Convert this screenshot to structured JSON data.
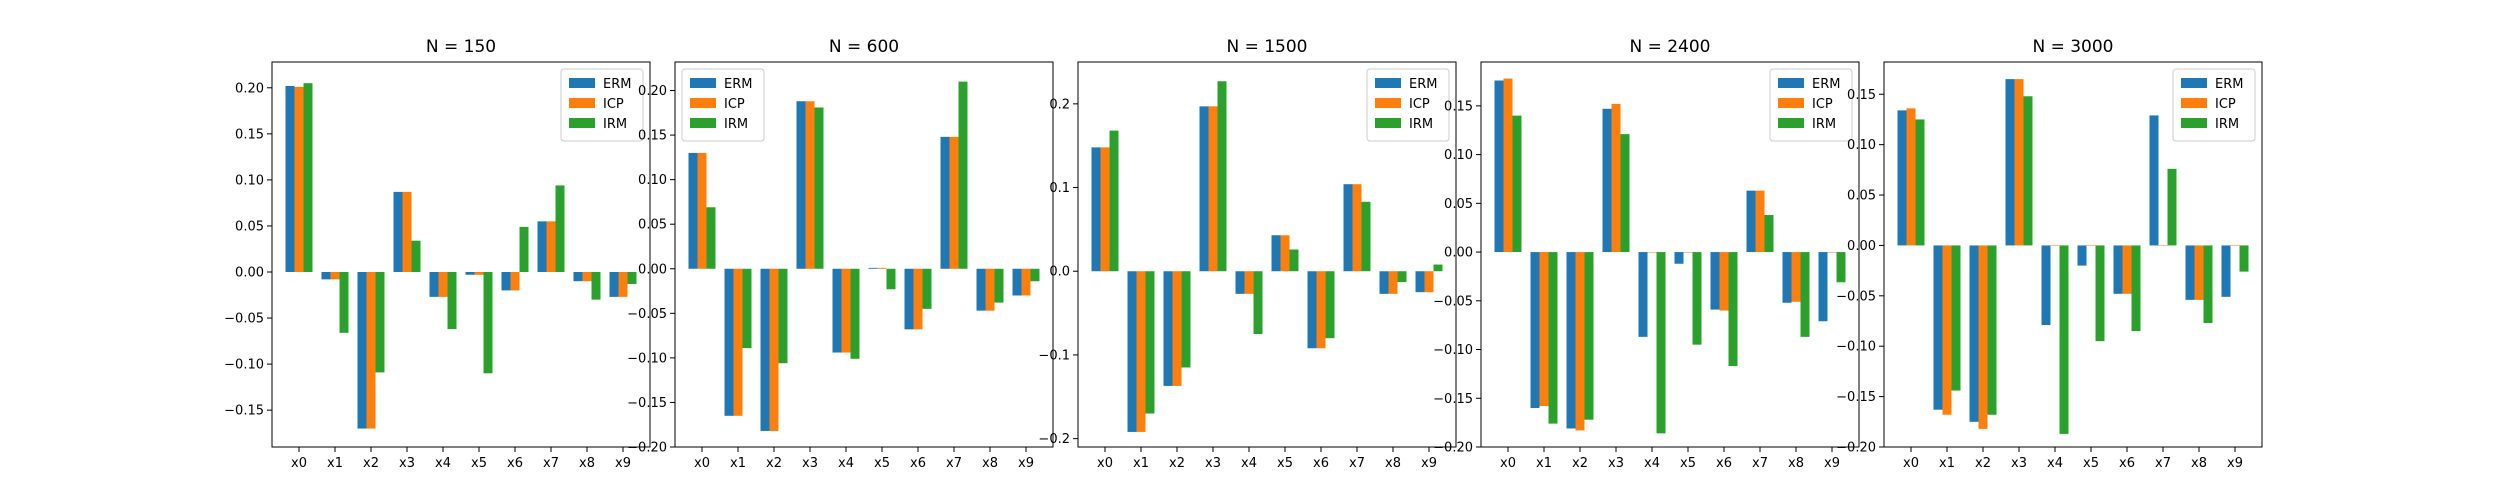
{
  "colors": {
    "ERM": "#1f77b4",
    "ICP": "#ff7f0e",
    "IRM": "#2ca02c"
  },
  "chart_data": [
    {
      "type": "bar",
      "title": "N = 150",
      "categories": [
        "x0",
        "x1",
        "x2",
        "x3",
        "x4",
        "x5",
        "x6",
        "x7",
        "x8",
        "x9"
      ],
      "ylim": [
        -0.19,
        0.228
      ],
      "yticks": [
        -0.15,
        -0.1,
        -0.05,
        0.0,
        0.05,
        0.1,
        0.15,
        0.2
      ],
      "ytick_labels": [
        "−0.15",
        "−0.10",
        "−0.05",
        "0.00",
        "0.05",
        "0.10",
        "0.15",
        "0.20"
      ],
      "legend": "top-right",
      "series": [
        {
          "name": "ERM",
          "values": [
            0.202,
            -0.008,
            -0.17,
            0.087,
            -0.027,
            -0.003,
            -0.02,
            0.055,
            -0.01,
            -0.027
          ]
        },
        {
          "name": "ICP",
          "values": [
            0.201,
            -0.008,
            -0.17,
            0.087,
            -0.027,
            -0.003,
            -0.02,
            0.055,
            -0.01,
            -0.027
          ]
        },
        {
          "name": "IRM",
          "values": [
            0.205,
            -0.066,
            -0.109,
            0.034,
            -0.062,
            -0.11,
            0.049,
            0.094,
            -0.03,
            -0.013
          ]
        }
      ]
    },
    {
      "type": "bar",
      "title": "N = 600",
      "categories": [
        "x0",
        "x1",
        "x2",
        "x3",
        "x4",
        "x5",
        "x6",
        "x7",
        "x8",
        "x9"
      ],
      "ylim": [
        -0.2,
        0.232
      ],
      "yticks": [
        -0.2,
        -0.15,
        -0.1,
        -0.05,
        0.0,
        0.05,
        0.1,
        0.15,
        0.2
      ],
      "ytick_labels": [
        "−0.20",
        "−0.15",
        "−0.10",
        "−0.05",
        "0.00",
        "0.05",
        "0.10",
        "0.15",
        "0.20"
      ],
      "legend": "top-left",
      "series": [
        {
          "name": "ERM",
          "values": [
            0.13,
            -0.165,
            -0.182,
            0.188,
            -0.094,
            0.001,
            -0.068,
            0.148,
            -0.047,
            -0.03
          ]
        },
        {
          "name": "ICP",
          "values": [
            0.13,
            -0.165,
            -0.182,
            0.188,
            -0.094,
            0.001,
            -0.068,
            0.148,
            -0.047,
            -0.03
          ]
        },
        {
          "name": "IRM",
          "values": [
            0.069,
            -0.089,
            -0.106,
            0.181,
            -0.101,
            -0.023,
            -0.045,
            0.21,
            -0.038,
            -0.014
          ]
        }
      ]
    },
    {
      "type": "bar",
      "title": "N = 1500",
      "categories": [
        "x0",
        "x1",
        "x2",
        "x3",
        "x4",
        "x5",
        "x6",
        "x7",
        "x8",
        "x9"
      ],
      "ylim": [
        -0.21,
        0.25
      ],
      "yticks": [
        -0.2,
        -0.1,
        0.0,
        0.1,
        0.2
      ],
      "ytick_labels": [
        "−0.2",
        "−0.1",
        "0.0",
        "0.1",
        "0.2"
      ],
      "legend": "top-right",
      "series": [
        {
          "name": "ERM",
          "values": [
            0.148,
            -0.192,
            -0.137,
            0.197,
            -0.027,
            0.043,
            -0.092,
            0.104,
            -0.027,
            -0.025
          ]
        },
        {
          "name": "ICP",
          "values": [
            0.148,
            -0.192,
            -0.137,
            0.197,
            -0.027,
            0.043,
            -0.092,
            0.104,
            -0.027,
            -0.025
          ]
        },
        {
          "name": "IRM",
          "values": [
            0.168,
            -0.17,
            -0.115,
            0.227,
            -0.075,
            0.026,
            -0.08,
            0.083,
            -0.013,
            0.008
          ]
        }
      ]
    },
    {
      "type": "bar",
      "title": "N = 2400",
      "categories": [
        "x0",
        "x1",
        "x2",
        "x3",
        "x4",
        "x5",
        "x6",
        "x7",
        "x8",
        "x9"
      ],
      "ylim": [
        -0.2,
        0.195
      ],
      "yticks": [
        -0.2,
        -0.15,
        -0.1,
        -0.05,
        0.0,
        0.05,
        0.1,
        0.15
      ],
      "ytick_labels": [
        "−0.20",
        "−0.15",
        "−0.10",
        "−0.05",
        "0.00",
        "0.05",
        "0.10",
        "0.15"
      ],
      "legend": "top-right",
      "series": [
        {
          "name": "ERM",
          "values": [
            0.176,
            -0.16,
            -0.181,
            0.147,
            -0.087,
            -0.012,
            -0.059,
            0.063,
            -0.052,
            -0.071
          ]
        },
        {
          "name": "ICP",
          "values": [
            0.178,
            -0.158,
            -0.183,
            0.152,
            0.0,
            0.0,
            -0.06,
            0.063,
            -0.051,
            0.0
          ]
        },
        {
          "name": "IRM",
          "values": [
            0.14,
            -0.176,
            -0.172,
            0.121,
            -0.186,
            -0.095,
            -0.117,
            0.038,
            -0.087,
            -0.031
          ]
        }
      ]
    },
    {
      "type": "bar",
      "title": "N = 3000",
      "categories": [
        "x0",
        "x1",
        "x2",
        "x3",
        "x4",
        "x5",
        "x6",
        "x7",
        "x8",
        "x9"
      ],
      "ylim": [
        -0.2,
        0.182
      ],
      "yticks": [
        -0.2,
        -0.15,
        -0.1,
        -0.05,
        0.0,
        0.05,
        0.1,
        0.15
      ],
      "ytick_labels": [
        "−0.20",
        "−0.15",
        "−0.10",
        "−0.05",
        "0.00",
        "0.05",
        "0.10",
        "0.15"
      ],
      "legend": "top-right",
      "series": [
        {
          "name": "ERM",
          "values": [
            0.134,
            -0.163,
            -0.175,
            0.165,
            -0.079,
            -0.02,
            -0.048,
            0.129,
            -0.054,
            -0.051
          ]
        },
        {
          "name": "ICP",
          "values": [
            0.136,
            -0.168,
            -0.182,
            0.165,
            0.0,
            0.0,
            -0.048,
            0.0,
            -0.054,
            0.0
          ]
        },
        {
          "name": "IRM",
          "values": [
            0.125,
            -0.144,
            -0.168,
            0.148,
            -0.187,
            -0.095,
            -0.085,
            0.076,
            -0.077,
            -0.026
          ]
        }
      ]
    }
  ]
}
